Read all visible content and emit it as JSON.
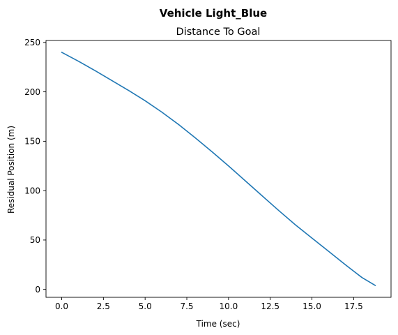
{
  "chart_data": {
    "type": "line",
    "suptitle": "Vehicle Light_Blue",
    "title": "Distance To Goal",
    "xlabel": "Time (sec)",
    "ylabel": "Residual Position (m)",
    "xlim": [
      -0.94,
      19.74
    ],
    "ylim": [
      -8.0,
      252.0
    ],
    "xticks": [
      0.0,
      2.5,
      5.0,
      7.5,
      10.0,
      12.5,
      15.0,
      17.5
    ],
    "xtick_labels": [
      "0.0",
      "2.5",
      "5.0",
      "7.5",
      "10.0",
      "12.5",
      "15.0",
      "17.5"
    ],
    "yticks": [
      0,
      50,
      100,
      150,
      200,
      250
    ],
    "ytick_labels": [
      "0",
      "50",
      "100",
      "150",
      "200",
      "250"
    ],
    "grid": false,
    "series": [
      {
        "color": "#1f77b4",
        "x": [
          0.0,
          1.0,
          2.0,
          3.0,
          4.0,
          5.0,
          6.0,
          7.0,
          8.0,
          9.0,
          10.0,
          11.0,
          12.0,
          13.0,
          14.0,
          15.0,
          16.0,
          17.0,
          18.0,
          18.8
        ],
        "y": [
          240,
          231,
          221.5,
          211.5,
          201.5,
          191,
          179.5,
          167,
          153.5,
          139.5,
          125,
          110,
          95,
          80,
          65.5,
          52,
          38.5,
          25,
          12,
          4
        ]
      }
    ]
  }
}
